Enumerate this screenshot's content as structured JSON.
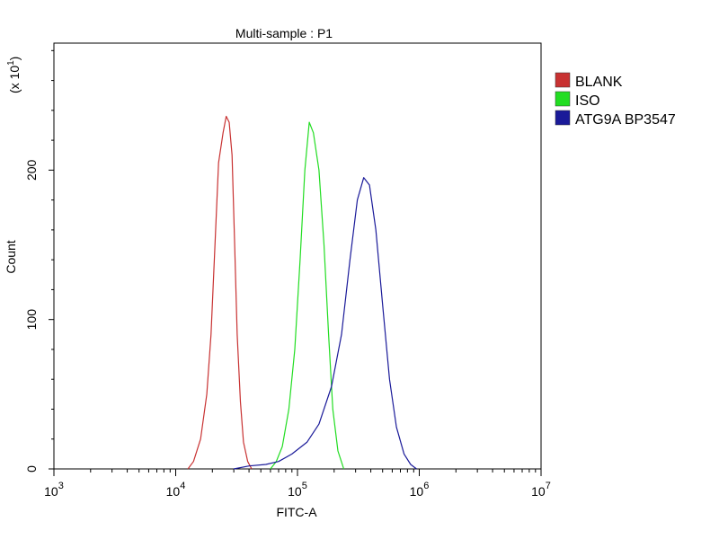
{
  "chart_data": {
    "type": "line",
    "title": "Multi-sample : P1",
    "xlabel": "FITC-A",
    "ylabel": "Count",
    "y_multiplier_label": "(x 10",
    "y_multiplier_exp": "1",
    "x_scale": "log",
    "xlim": [
      1000,
      10000000
    ],
    "ylim": [
      0,
      285
    ],
    "grid": false,
    "legend_position": "right",
    "x_ticks": [
      {
        "value": 1000,
        "base": "10",
        "exp": "3"
      },
      {
        "value": 10000,
        "base": "10",
        "exp": "4"
      },
      {
        "value": 100000,
        "base": "10",
        "exp": "5"
      },
      {
        "value": 1000000,
        "base": "10",
        "exp": "6"
      },
      {
        "value": 10000000,
        "base": "10",
        "exp": "7"
      }
    ],
    "y_ticks": [
      {
        "value": 0,
        "label": "0"
      },
      {
        "value": 100,
        "label": "100"
      },
      {
        "value": 200,
        "label": "200"
      }
    ],
    "series": [
      {
        "name": "BLANK",
        "color": "#c83232",
        "points": [
          [
            12600,
            0
          ],
          [
            14000,
            5
          ],
          [
            16000,
            20
          ],
          [
            18000,
            50
          ],
          [
            19500,
            90
          ],
          [
            21000,
            150
          ],
          [
            22500,
            205
          ],
          [
            24500,
            225
          ],
          [
            26000,
            236
          ],
          [
            27500,
            232
          ],
          [
            29000,
            210
          ],
          [
            30500,
            150
          ],
          [
            32000,
            90
          ],
          [
            34000,
            45
          ],
          [
            36000,
            18
          ],
          [
            39000,
            5
          ],
          [
            42000,
            0
          ]
        ]
      },
      {
        "name": "ISO",
        "color": "#22dd22",
        "points": [
          [
            60000,
            0
          ],
          [
            67000,
            5
          ],
          [
            75000,
            15
          ],
          [
            85000,
            40
          ],
          [
            95000,
            80
          ],
          [
            105000,
            140
          ],
          [
            115000,
            200
          ],
          [
            125000,
            232
          ],
          [
            135000,
            225
          ],
          [
            150000,
            200
          ],
          [
            165000,
            150
          ],
          [
            180000,
            90
          ],
          [
            195000,
            40
          ],
          [
            215000,
            12
          ],
          [
            240000,
            0
          ]
        ]
      },
      {
        "name": "ATG9A BP3547",
        "color": "#1a1a99",
        "points": [
          [
            30000,
            0
          ],
          [
            40000,
            2
          ],
          [
            55000,
            3
          ],
          [
            70000,
            5
          ],
          [
            90000,
            10
          ],
          [
            120000,
            18
          ],
          [
            150000,
            30
          ],
          [
            190000,
            55
          ],
          [
            230000,
            90
          ],
          [
            270000,
            140
          ],
          [
            310000,
            180
          ],
          [
            350000,
            195
          ],
          [
            390000,
            190
          ],
          [
            440000,
            160
          ],
          [
            500000,
            110
          ],
          [
            570000,
            60
          ],
          [
            650000,
            28
          ],
          [
            750000,
            10
          ],
          [
            850000,
            3
          ],
          [
            950000,
            0
          ]
        ]
      }
    ]
  }
}
